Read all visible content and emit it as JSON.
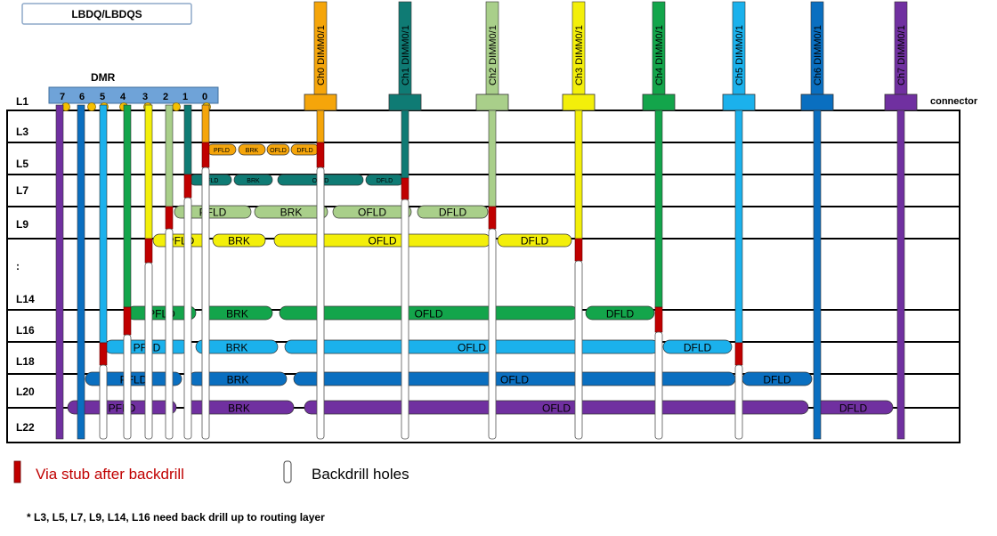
{
  "title_box": "LBDQ/LBDQS",
  "dmr": {
    "label": "DMR",
    "pins": [
      "7",
      "6",
      "5",
      "4",
      "3",
      "2",
      "1",
      "0"
    ]
  },
  "connector_label": "connector",
  "layers": [
    "L1",
    "L3",
    "L5",
    "L7",
    "L9",
    ":",
    "L14",
    "L16",
    "L18",
    "L20",
    "L22"
  ],
  "channels": [
    {
      "label": "Ch0 DIMM0/1",
      "color": "#f5a50a"
    },
    {
      "label": "Ch1 DIMM0/1",
      "color": "#0f7b74"
    },
    {
      "label": "Ch2 DIMM0/1",
      "color": "#a9cf8a"
    },
    {
      "label": "Ch3 DIMM0/1",
      "color": "#f3ef0a"
    },
    {
      "label": "Ch4 DIMM0/1",
      "color": "#13a54b"
    },
    {
      "label": "Ch5 DIMM0/1",
      "color": "#1bb1ec"
    },
    {
      "label": "Ch6 DIMM0/1",
      "color": "#0a6fc0"
    },
    {
      "label": "Ch7 DIMM0/1",
      "color": "#7030a0"
    }
  ],
  "segments": [
    "PFLD",
    "BRK",
    "OFLD",
    "DFLD"
  ],
  "legend": {
    "stub": "Via stub after backdrill",
    "holes": "Backdrill holes"
  },
  "footnote": "* L3, L5, L7, L9, L14, L16 need back drill up to routing layer"
}
